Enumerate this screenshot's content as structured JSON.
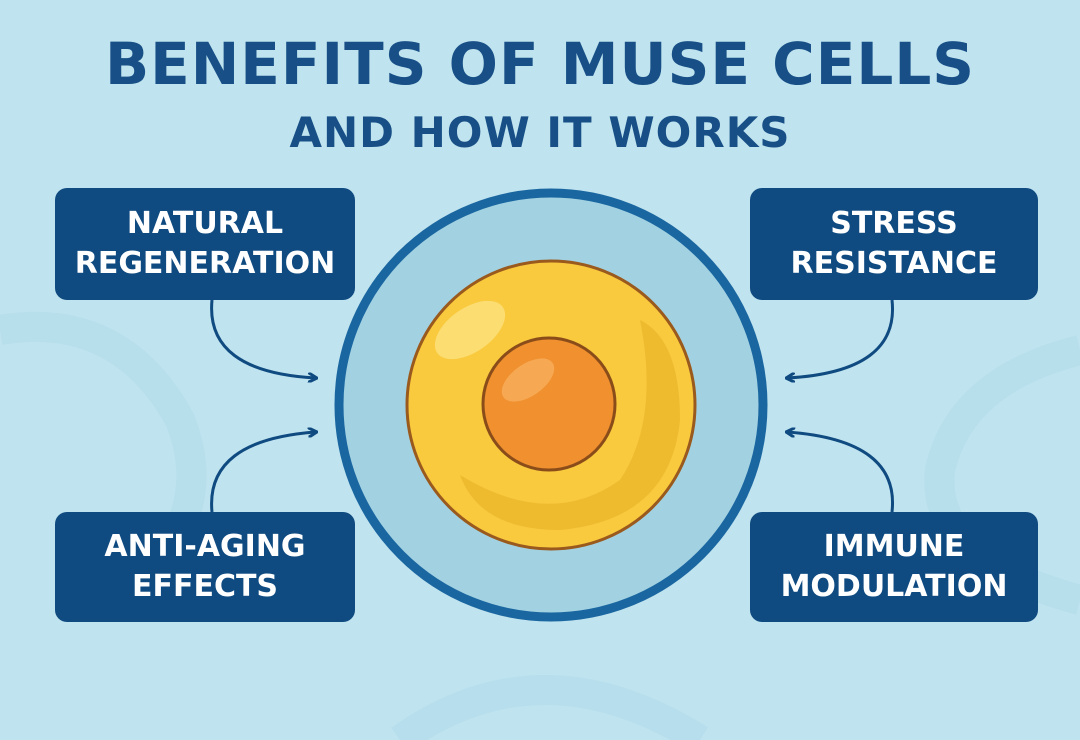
{
  "title": {
    "line1": "BENEFITS OF MUSE CELLS",
    "line2": "AND HOW IT WORKS"
  },
  "benefits": [
    {
      "line1": "NATURAL",
      "line2": "REGENERATION"
    },
    {
      "line1": "STRESS",
      "line2": "RESISTANCE"
    },
    {
      "line1": "ANTI-AGING",
      "line2": "EFFECTS"
    },
    {
      "line1": "IMMUNE",
      "line2": "MODULATION"
    }
  ],
  "colors": {
    "background": "#bfe3ef",
    "title": "#174f86",
    "box": "#0f4a80",
    "ring": "#1a66a0",
    "cell": "#f9c93e",
    "nucleus": "#f0902f"
  }
}
